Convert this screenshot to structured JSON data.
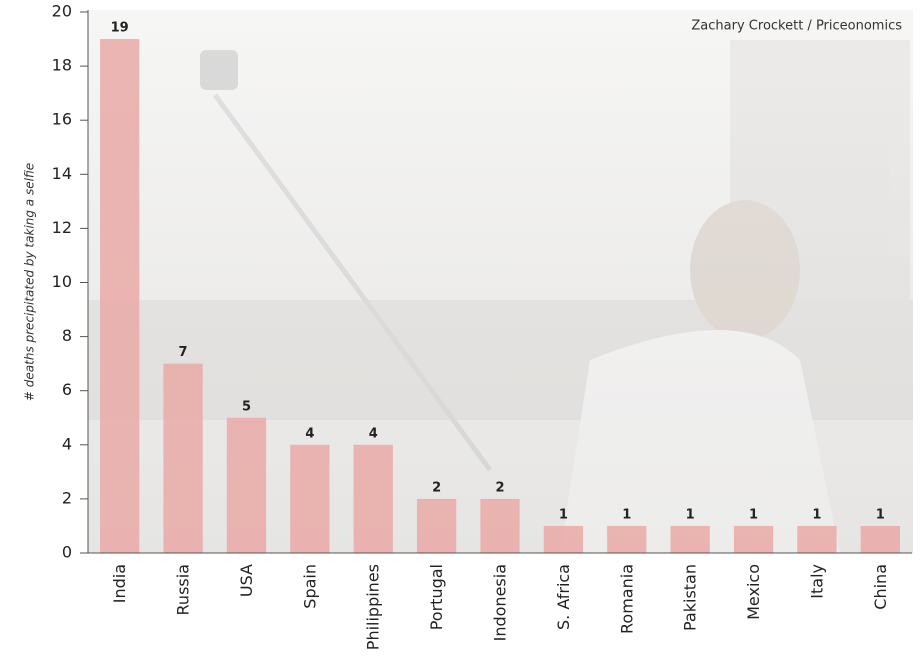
{
  "chart_data": {
    "type": "bar",
    "annotation": "Zachary Crockett / Priceonomics",
    "y_label": "# deaths precipitated by taking a selfie",
    "categories": [
      "India",
      "Russia",
      "USA",
      "Spain",
      "Philippines",
      "Portugal",
      "Indonesia",
      "S. Africa",
      "Romania",
      "Pakistan",
      "Mexico",
      "Italy",
      "China"
    ],
    "values": [
      19,
      7,
      5,
      4,
      4,
      2,
      2,
      1,
      1,
      1,
      1,
      1,
      1
    ],
    "color": "#e9a9a7",
    "ylim": [
      0,
      20
    ],
    "yticks": [
      0,
      2,
      4,
      6,
      8,
      10,
      12,
      14,
      16,
      18,
      20
    ],
    "grid": false
  }
}
